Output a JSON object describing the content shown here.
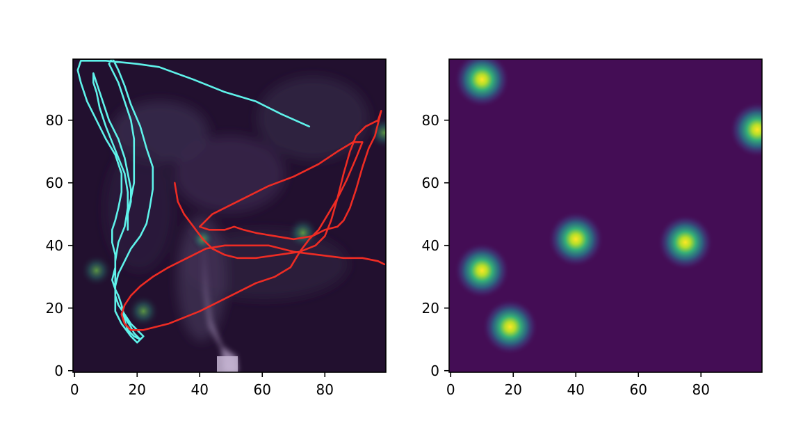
{
  "chart_data": [
    {
      "type": "line",
      "title": "",
      "xlabel": "",
      "ylabel": "",
      "xlim": [
        -0.5,
        99.5
      ],
      "ylim": [
        -0.5,
        99.5
      ],
      "xticks": [
        0,
        20,
        40,
        60,
        80
      ],
      "yticks": [
        0,
        20,
        40,
        60,
        80
      ],
      "xtick_labels": [
        "0",
        "20",
        "40",
        "60",
        "80"
      ],
      "ytick_labels": [
        "0",
        "20",
        "40",
        "60",
        "80"
      ],
      "background": "dark purple odour plume field with faint bright blobs",
      "background_blobs": [
        {
          "x": 7,
          "y": 32,
          "r": 4
        },
        {
          "x": 22,
          "y": 19,
          "r": 4
        },
        {
          "x": 73,
          "y": 44,
          "r": 4
        },
        {
          "x": 99,
          "y": 76,
          "r": 4
        },
        {
          "x": 41,
          "y": 42,
          "r": 3
        }
      ],
      "series": [
        {
          "name": "cyan trajectory",
          "color": "#5ff2ea",
          "points": [
            [
              75,
              78
            ],
            [
              66,
              82
            ],
            [
              58,
              86
            ],
            [
              48,
              89
            ],
            [
              38,
              93
            ],
            [
              27,
              97
            ],
            [
              20,
              98
            ],
            [
              10,
              99
            ],
            [
              2,
              99
            ],
            [
              1,
              96
            ],
            [
              2,
              92
            ],
            [
              4,
              86
            ],
            [
              7,
              80
            ],
            [
              10,
              74
            ],
            [
              13,
              69
            ],
            [
              15,
              63
            ],
            [
              15,
              57
            ],
            [
              14,
              52
            ],
            [
              13,
              48
            ],
            [
              12,
              45
            ],
            [
              12,
              41
            ],
            [
              13,
              37
            ],
            [
              13,
              33
            ],
            [
              12,
              29
            ],
            [
              13,
              26
            ],
            [
              14,
              24
            ],
            [
              15,
              21
            ],
            [
              16,
              17
            ],
            [
              18,
              14
            ],
            [
              19,
              12
            ],
            [
              21,
              10
            ],
            [
              20,
              9
            ],
            [
              18,
              11
            ],
            [
              15,
              15
            ],
            [
              13,
              19
            ],
            [
              13,
              24
            ],
            [
              13,
              29
            ],
            [
              13,
              35
            ],
            [
              14,
              41
            ],
            [
              16,
              46
            ],
            [
              17,
              52
            ],
            [
              17,
              57
            ],
            [
              16,
              63
            ],
            [
              14,
              68
            ],
            [
              12,
              73
            ],
            [
              10,
              78
            ],
            [
              8,
              84
            ],
            [
              7,
              89
            ],
            [
              6,
              92
            ],
            [
              6,
              95
            ],
            [
              7,
              92
            ],
            [
              9,
              86
            ],
            [
              11,
              80
            ],
            [
              14,
              74
            ],
            [
              16,
              68
            ],
            [
              17,
              63
            ],
            [
              18,
              58
            ],
            [
              18,
              54
            ],
            [
              17,
              50
            ],
            [
              17,
              45
            ],
            [
              17,
              50
            ],
            [
              18,
              55
            ],
            [
              19,
              60
            ],
            [
              19,
              66
            ],
            [
              19,
              74
            ],
            [
              18,
              80
            ],
            [
              16,
              86
            ],
            [
              14,
              92
            ],
            [
              12,
              96
            ],
            [
              11,
              98
            ],
            [
              12,
              100
            ],
            [
              14,
              96
            ],
            [
              16,
              91
            ],
            [
              18,
              85
            ],
            [
              21,
              78
            ],
            [
              23,
              71
            ],
            [
              25,
              65
            ],
            [
              25,
              58
            ],
            [
              24,
              52
            ],
            [
              23,
              47
            ],
            [
              21,
              43
            ],
            [
              18,
              39
            ],
            [
              16,
              35
            ],
            [
              14,
              31
            ],
            [
              13,
              27
            ],
            [
              13,
              24
            ],
            [
              14,
              21
            ],
            [
              16,
              18
            ],
            [
              18,
              15
            ],
            [
              20,
              13
            ],
            [
              22,
              11
            ],
            [
              21,
              10
            ],
            [
              19,
              11
            ],
            [
              17,
              13
            ],
            [
              16,
              16
            ],
            [
              15,
              21
            ]
          ]
        },
        {
          "name": "red trajectory",
          "color": "#ee2c24",
          "points": [
            [
              32,
              60
            ],
            [
              33,
              54
            ],
            [
              35,
              50
            ],
            [
              38,
              46
            ],
            [
              41,
              42
            ],
            [
              44,
              39
            ],
            [
              48,
              37
            ],
            [
              52,
              36
            ],
            [
              58,
              36
            ],
            [
              65,
              37
            ],
            [
              72,
              38
            ],
            [
              77,
              40
            ],
            [
              80,
              43
            ],
            [
              82,
              48
            ],
            [
              84,
              55
            ],
            [
              86,
              63
            ],
            [
              88,
              70
            ],
            [
              90,
              75
            ],
            [
              93,
              78
            ],
            [
              95,
              79
            ],
            [
              97,
              80
            ],
            [
              98,
              83
            ],
            [
              97,
              79
            ],
            [
              96,
              75
            ],
            [
              94,
              71
            ],
            [
              92,
              65
            ],
            [
              90,
              58
            ],
            [
              88,
              52
            ],
            [
              86,
              48
            ],
            [
              84,
              46
            ],
            [
              80,
              45
            ],
            [
              76,
              43
            ],
            [
              70,
              42
            ],
            [
              64,
              43
            ],
            [
              58,
              44
            ],
            [
              54,
              45
            ],
            [
              51,
              46
            ],
            [
              48,
              45
            ],
            [
              45,
              45
            ],
            [
              43,
              45
            ],
            [
              40,
              46
            ],
            [
              42,
              48
            ],
            [
              44,
              50
            ],
            [
              48,
              52
            ],
            [
              54,
              55
            ],
            [
              62,
              59
            ],
            [
              70,
              62
            ],
            [
              78,
              66
            ],
            [
              84,
              70
            ],
            [
              89,
              73
            ],
            [
              92,
              73
            ],
            [
              90,
              68
            ],
            [
              87,
              61
            ],
            [
              84,
              55
            ],
            [
              81,
              50
            ],
            [
              78,
              45
            ],
            [
              75,
              42
            ],
            [
              72,
              38
            ],
            [
              69,
              33
            ],
            [
              64,
              30
            ],
            [
              58,
              28
            ],
            [
              52,
              25
            ],
            [
              46,
              22
            ],
            [
              40,
              19
            ],
            [
              35,
              17
            ],
            [
              30,
              15
            ],
            [
              26,
              14
            ],
            [
              22,
              13
            ],
            [
              18,
              13
            ],
            [
              16,
              15
            ],
            [
              15,
              18
            ],
            [
              16,
              21
            ],
            [
              18,
              24
            ],
            [
              21,
              27
            ],
            [
              25,
              30
            ],
            [
              30,
              33
            ],
            [
              36,
              36
            ],
            [
              42,
              39
            ],
            [
              48,
              40
            ],
            [
              55,
              40
            ],
            [
              62,
              40
            ],
            [
              70,
              38
            ],
            [
              78,
              37
            ],
            [
              86,
              36
            ],
            [
              92,
              36
            ],
            [
              97,
              35
            ],
            [
              99,
              34
            ]
          ]
        }
      ]
    },
    {
      "type": "heatmap",
      "title": "",
      "xlabel": "",
      "ylabel": "",
      "xlim": [
        -0.5,
        99.5
      ],
      "ylim": [
        -0.5,
        99.5
      ],
      "xticks": [
        0,
        20,
        40,
        60,
        80
      ],
      "yticks": [
        0,
        20,
        40,
        60,
        80
      ],
      "xtick_labels": [
        "0",
        "20",
        "40",
        "60",
        "80"
      ],
      "ytick_labels": [
        "0",
        "20",
        "40",
        "60",
        "80"
      ],
      "colormap": "viridis",
      "background_color": "#440d55",
      "blobs": [
        {
          "x": 10,
          "y": 93,
          "sigma": 3.2
        },
        {
          "x": 98,
          "y": 77,
          "sigma": 3.2
        },
        {
          "x": 40,
          "y": 42,
          "sigma": 3.2
        },
        {
          "x": 75,
          "y": 41,
          "sigma": 3.2
        },
        {
          "x": 10,
          "y": 32,
          "sigma": 3.2
        },
        {
          "x": 19,
          "y": 14,
          "sigma": 3.2
        }
      ]
    }
  ]
}
